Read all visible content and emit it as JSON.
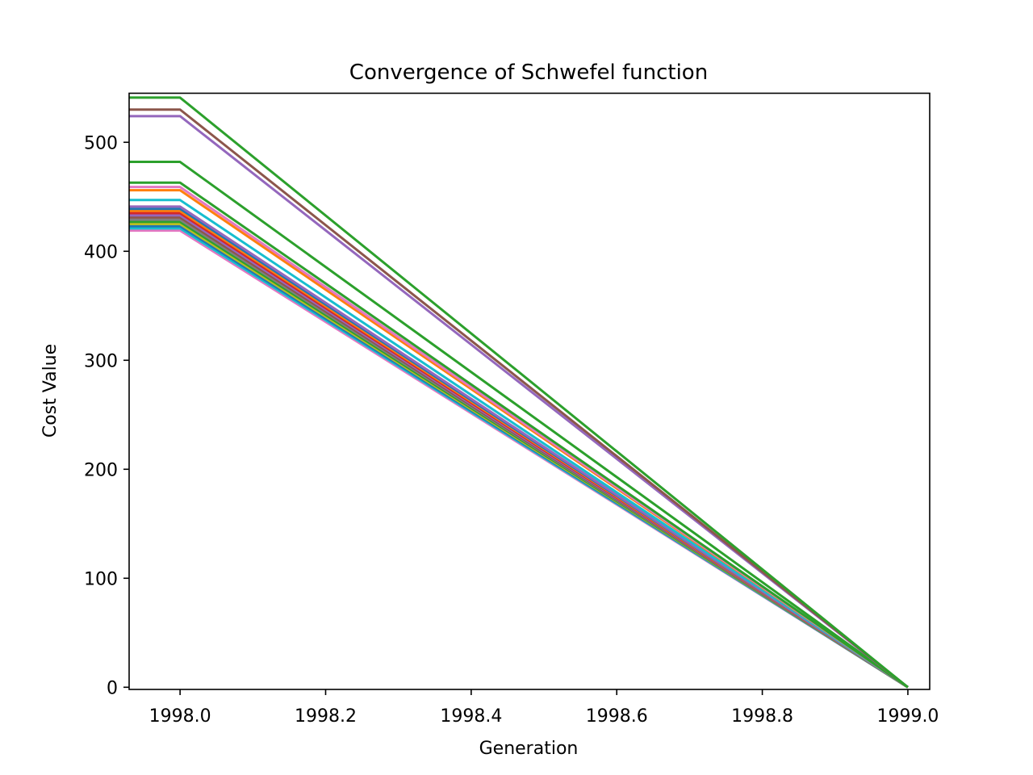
{
  "chart_data": {
    "type": "line",
    "title": "Convergence of Schwefel function",
    "xlabel": "Generation",
    "ylabel": "Cost Value",
    "xlim": [
      1997.93,
      1999.03
    ],
    "ylim": [
      -2,
      545
    ],
    "x_ticks": [
      1998.0,
      1998.2,
      1998.4,
      1998.6,
      1998.8,
      1999.0
    ],
    "x_tick_labels": [
      "1998.0",
      "1998.2",
      "1998.4",
      "1998.6",
      "1998.8",
      "1999.0"
    ],
    "y_ticks": [
      0,
      100,
      200,
      300,
      400,
      500
    ],
    "y_tick_labels": [
      "0",
      "100",
      "200",
      "300",
      "400",
      "500"
    ],
    "grid": false,
    "legend": "none",
    "x": [
      1997.93,
      1998.0,
      1999.0
    ],
    "series": [
      {
        "color": "#e377c2",
        "values": [
          419,
          419,
          0
        ]
      },
      {
        "color": "#17becf",
        "values": [
          421,
          421,
          0
        ]
      },
      {
        "color": "#1f77b4",
        "values": [
          423,
          423,
          0
        ]
      },
      {
        "color": "#bcbd22",
        "values": [
          425,
          425,
          0
        ]
      },
      {
        "color": "#2ca02c",
        "values": [
          427,
          427,
          0
        ]
      },
      {
        "color": "#7f7f7f",
        "values": [
          429,
          429,
          0
        ]
      },
      {
        "color": "#8c564b",
        "values": [
          431,
          431,
          0
        ]
      },
      {
        "color": "#9467bd",
        "values": [
          433,
          433,
          0
        ]
      },
      {
        "color": "#d62728",
        "values": [
          435,
          435,
          0
        ]
      },
      {
        "color": "#ff7f0e",
        "values": [
          437,
          437,
          0
        ]
      },
      {
        "color": "#1f77b4",
        "values": [
          439,
          439,
          0
        ]
      },
      {
        "color": "#9467bd",
        "values": [
          441,
          441,
          0
        ]
      },
      {
        "color": "#17becf",
        "values": [
          447,
          447,
          0
        ]
      },
      {
        "color": "#ff7f0e",
        "values": [
          456,
          456,
          0
        ]
      },
      {
        "color": "#e377c2",
        "values": [
          459,
          459,
          0
        ]
      },
      {
        "color": "#2ca02c",
        "values": [
          463,
          463,
          0
        ]
      },
      {
        "color": "#2ca02c",
        "values": [
          482,
          482,
          0
        ]
      },
      {
        "color": "#9467bd",
        "values": [
          524,
          524,
          0
        ]
      },
      {
        "color": "#8c564b",
        "values": [
          530,
          530,
          0
        ]
      },
      {
        "color": "#2ca02c",
        "values": [
          541,
          541,
          0
        ]
      }
    ]
  }
}
